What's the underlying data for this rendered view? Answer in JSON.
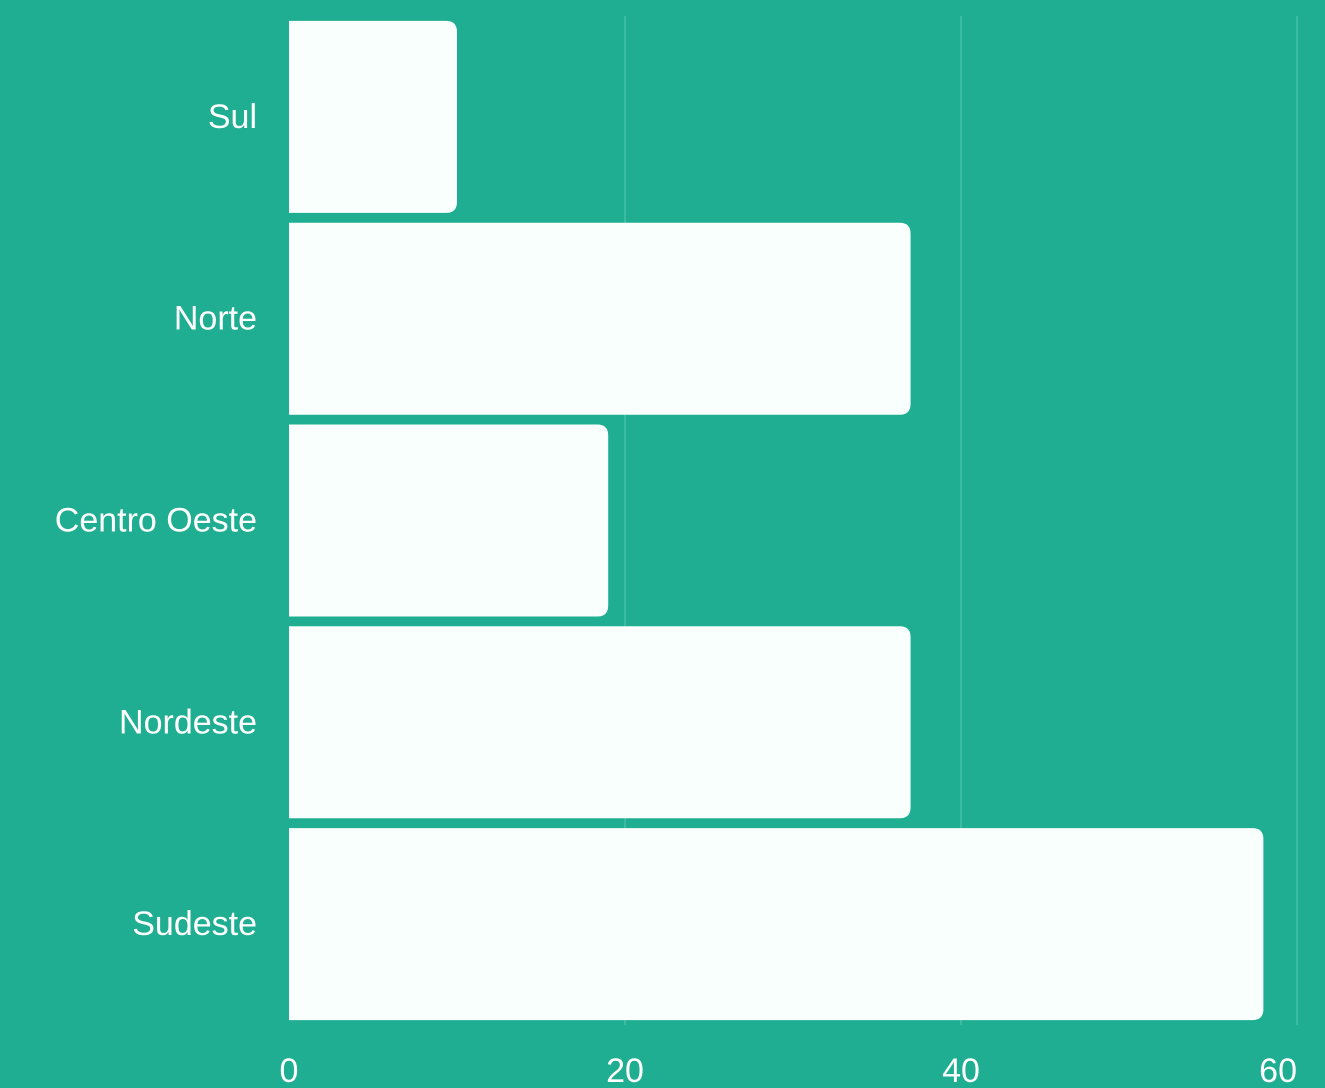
{
  "colors": {
    "background": "#1fae91",
    "bar": "#f8fffc",
    "text": "#ffffff",
    "grid": "#5cc6b0"
  },
  "chart_data": {
    "type": "bar",
    "orientation": "horizontal",
    "categories": [
      "Sul",
      "Norte",
      "Centro Oeste",
      "Nordeste",
      "Sudeste"
    ],
    "values": [
      10,
      37,
      19,
      37,
      58
    ],
    "xlim": [
      0,
      60
    ],
    "xticks": [
      "0",
      "20",
      "40",
      "60"
    ],
    "grid": true,
    "legend": "none"
  }
}
